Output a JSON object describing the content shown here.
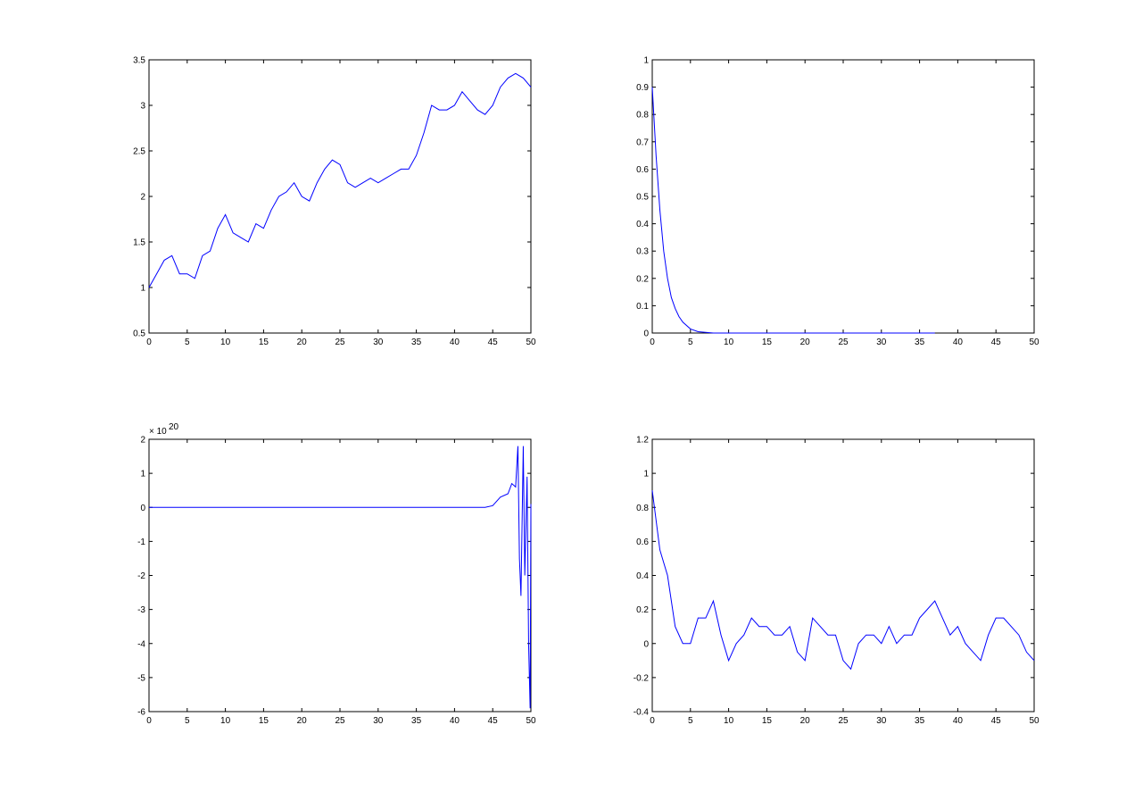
{
  "chart_data": [
    {
      "type": "line",
      "color": "#0000ff",
      "x": [
        0,
        1,
        2,
        3,
        4,
        5,
        6,
        7,
        8,
        9,
        10,
        11,
        12,
        13,
        14,
        15,
        16,
        17,
        18,
        19,
        20,
        21,
        22,
        23,
        24,
        25,
        26,
        27,
        28,
        29,
        30,
        31,
        32,
        33,
        34,
        35,
        36,
        37,
        38,
        39,
        40,
        41,
        42,
        43,
        44,
        45,
        46,
        47,
        48,
        49,
        50
      ],
      "values": [
        1.0,
        1.15,
        1.3,
        1.35,
        1.15,
        1.15,
        1.1,
        1.35,
        1.4,
        1.65,
        1.8,
        1.6,
        1.55,
        1.5,
        1.7,
        1.65,
        1.85,
        2.0,
        2.05,
        2.15,
        2.0,
        1.95,
        2.15,
        2.3,
        2.4,
        2.35,
        2.15,
        2.1,
        2.15,
        2.2,
        2.15,
        2.2,
        2.25,
        2.3,
        2.3,
        2.45,
        2.7,
        3.0,
        2.95,
        2.95,
        3.0,
        3.15,
        3.05,
        2.95,
        2.9,
        3.0,
        3.2,
        3.3,
        3.35,
        3.3,
        3.2
      ],
      "xlim": [
        0,
        50
      ],
      "ylim": [
        0.5,
        3.5
      ],
      "xticks": [
        0,
        5,
        10,
        15,
        20,
        25,
        30,
        35,
        40,
        45,
        50
      ],
      "yticks": [
        0.5,
        1,
        1.5,
        2,
        2.5,
        3,
        3.5
      ]
    },
    {
      "type": "line",
      "color": "#0000ff",
      "x": [
        0,
        0.5,
        1,
        1.5,
        2,
        2.5,
        3,
        3.5,
        4,
        5,
        6,
        8,
        10,
        15,
        20,
        25,
        30,
        35,
        37
      ],
      "values": [
        0.9,
        0.65,
        0.45,
        0.3,
        0.2,
        0.13,
        0.09,
        0.06,
        0.04,
        0.015,
        0.005,
        0,
        0,
        0,
        0,
        0,
        0,
        0,
        0
      ],
      "xlim": [
        0,
        50
      ],
      "ylim": [
        0,
        1
      ],
      "xticks": [
        0,
        5,
        10,
        15,
        20,
        25,
        30,
        35,
        40,
        45,
        50
      ],
      "yticks": [
        0,
        0.1,
        0.2,
        0.3,
        0.4,
        0.5,
        0.6,
        0.7,
        0.8,
        0.9,
        1
      ]
    },
    {
      "type": "line",
      "color": "#0000ff",
      "x": [
        0,
        10,
        20,
        30,
        40,
        44,
        45,
        46,
        47,
        47.5,
        48,
        48.3,
        48.5,
        48.7,
        49,
        49.2,
        49.5,
        49.7,
        49.9,
        50
      ],
      "values": [
        0,
        0,
        0,
        0,
        0,
        0,
        0.05,
        0.3,
        0.4,
        0.7,
        0.6,
        1.8,
        -1.5,
        -2.6,
        1.8,
        -2,
        0.9,
        -4,
        -5.9,
        0.1
      ],
      "xlim": [
        0,
        50
      ],
      "ylim": [
        -6,
        2
      ],
      "xticks": [
        0,
        5,
        10,
        15,
        20,
        25,
        30,
        35,
        40,
        45,
        50
      ],
      "yticks": [
        -6,
        -5,
        -4,
        -3,
        -2,
        -1,
        0,
        1,
        2
      ],
      "y_multiplier": "× 10",
      "y_multiplier_exponent": "20"
    },
    {
      "type": "line",
      "color": "#0000ff",
      "x": [
        0,
        1,
        2,
        3,
        4,
        5,
        6,
        7,
        8,
        9,
        10,
        11,
        12,
        13,
        14,
        15,
        16,
        17,
        18,
        19,
        20,
        21,
        22,
        23,
        24,
        25,
        26,
        27,
        28,
        29,
        30,
        31,
        32,
        33,
        34,
        35,
        36,
        37,
        38,
        39,
        40,
        41,
        42,
        43,
        44,
        45,
        46,
        47,
        48,
        49,
        50
      ],
      "values": [
        0.9,
        0.55,
        0.4,
        0.1,
        0.0,
        0.0,
        0.15,
        0.15,
        0.25,
        0.05,
        -0.1,
        0.0,
        0.05,
        0.15,
        0.1,
        0.1,
        0.05,
        0.05,
        0.1,
        -0.05,
        -0.1,
        0.15,
        0.1,
        0.05,
        0.05,
        -0.1,
        -0.15,
        0.0,
        0.05,
        0.05,
        0.0,
        0.1,
        0.0,
        0.05,
        0.05,
        0.15,
        0.2,
        0.25,
        0.15,
        0.05,
        0.1,
        0.0,
        -0.05,
        -0.1,
        0.05,
        0.15,
        0.15,
        0.1,
        0.05,
        -0.05,
        -0.1
      ],
      "xlim": [
        0,
        50
      ],
      "ylim": [
        -0.4,
        1.2
      ],
      "xticks": [
        0,
        5,
        10,
        15,
        20,
        25,
        30,
        35,
        40,
        45,
        50
      ],
      "yticks": [
        -0.4,
        -0.2,
        0,
        0.2,
        0.4,
        0.6,
        0.8,
        1,
        1.2
      ]
    }
  ]
}
